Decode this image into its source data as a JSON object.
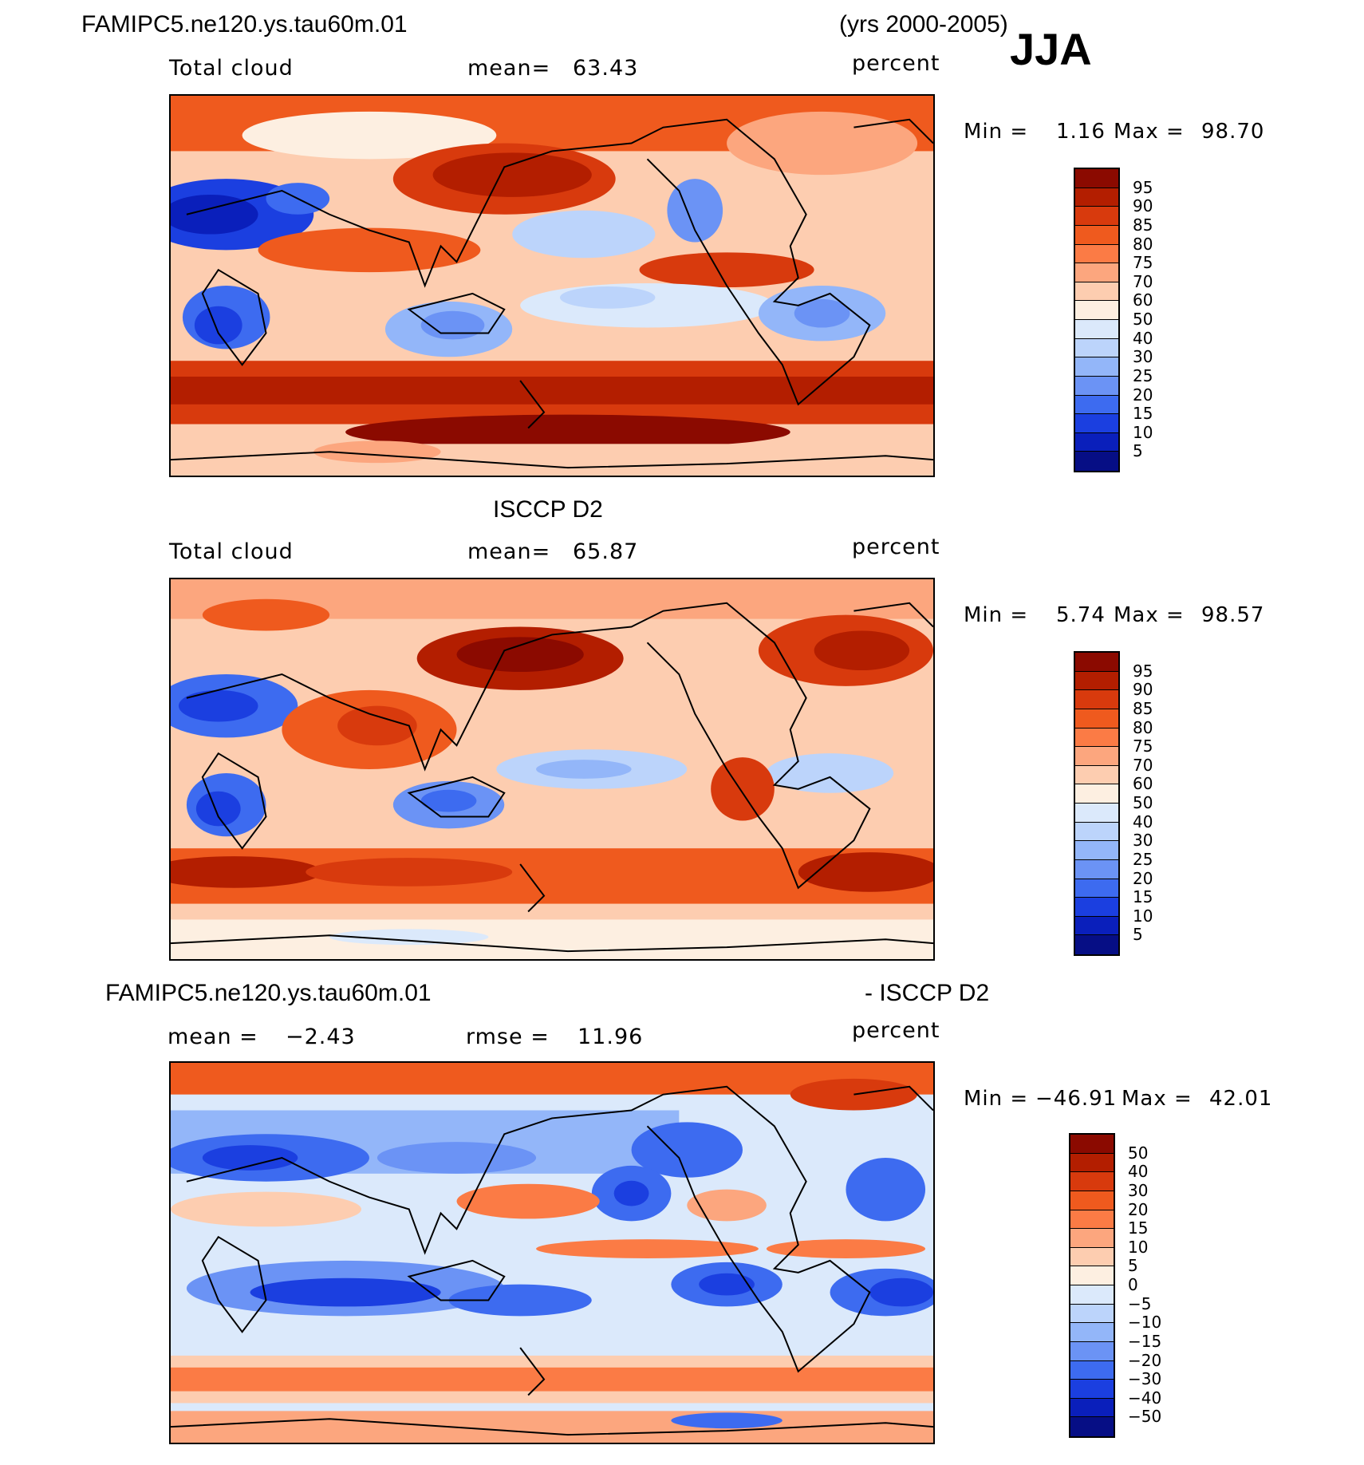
{
  "header": {
    "case_name": "FAMIPC5.ne120.ys.tau60m.01",
    "years": "(yrs 2000-2005)",
    "season": "JJA"
  },
  "panel1": {
    "variable": "Total cloud",
    "mean_label": "mean=",
    "mean_value": "63.43",
    "units": "percent",
    "min_label": "Min =",
    "min_value": "1.16",
    "max_label": "Max =",
    "max_value": "98.70",
    "colorbar": {
      "labels": [
        "95",
        "90",
        "85",
        "80",
        "75",
        "70",
        "60",
        "50",
        "40",
        "30",
        "25",
        "20",
        "15",
        "10",
        "5"
      ],
      "colors": [
        "#8b0a00",
        "#b31e00",
        "#d83a0d",
        "#ef5a1e",
        "#fb7b45",
        "#fca67e",
        "#fdcdb0",
        "#fdefe1",
        "#dbe9fb",
        "#bcd4fb",
        "#93b6f9",
        "#6b93f5",
        "#3d6bf0",
        "#1b3fe0",
        "#0a1fbb",
        "#060e85"
      ]
    }
  },
  "panel2": {
    "title": "ISCCP D2",
    "variable": "Total cloud",
    "mean_label": "mean=",
    "mean_value": "65.87",
    "units": "percent",
    "min_label": "Min =",
    "min_value": "5.74",
    "max_label": "Max =",
    "max_value": "98.57",
    "colorbar": {
      "labels": [
        "95",
        "90",
        "85",
        "80",
        "75",
        "70",
        "60",
        "50",
        "40",
        "30",
        "25",
        "20",
        "15",
        "10",
        "5"
      ],
      "colors": [
        "#8b0a00",
        "#b31e00",
        "#d83a0d",
        "#ef5a1e",
        "#fb7b45",
        "#fca67e",
        "#fdcdb0",
        "#fdefe1",
        "#dbe9fb",
        "#bcd4fb",
        "#93b6f9",
        "#6b93f5",
        "#3d6bf0",
        "#1b3fe0",
        "#0a1fbb",
        "#060e85"
      ]
    }
  },
  "panel3": {
    "title_left": "FAMIPC5.ne120.ys.tau60m.01",
    "title_right": "- ISCCP D2",
    "mean_label": "mean =",
    "mean_value": "−2.43",
    "rmse_label": "rmse =",
    "rmse_value": "11.96",
    "units": "percent",
    "min_label": "Min =",
    "min_value": "−46.91",
    "max_label": "Max =",
    "max_value": "42.01",
    "colorbar": {
      "labels": [
        "50",
        "40",
        "30",
        "20",
        "15",
        "10",
        "5",
        "0",
        "−5",
        "−10",
        "−15",
        "−20",
        "−30",
        "−40",
        "−50"
      ],
      "colors": [
        "#8b0a00",
        "#b31e00",
        "#d83a0d",
        "#ef5a1e",
        "#fb7b45",
        "#fca67e",
        "#fdcdb0",
        "#fdefe1",
        "#dbe9fb",
        "#bcd4fb",
        "#93b6f9",
        "#6b93f5",
        "#3d6bf0",
        "#1b3fe0",
        "#0a1fbb",
        "#060e85"
      ]
    }
  }
}
